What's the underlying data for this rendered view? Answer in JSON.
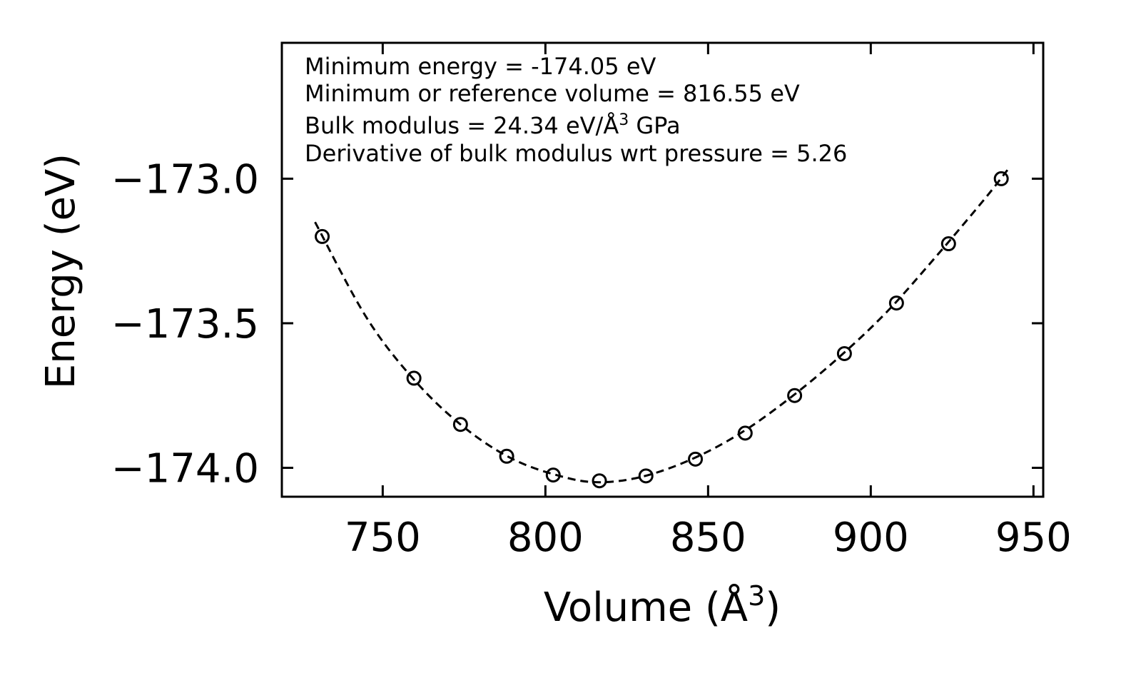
{
  "chart_data": {
    "type": "scatter",
    "xlabel": "Volume (Å³)",
    "ylabel": "Energy (eV)",
    "xlim": [
      719,
      953
    ],
    "ylim": [
      -174.1,
      -172.53
    ],
    "xticks": [
      750,
      800,
      850,
      900,
      950
    ],
    "yticks": [
      -174.0,
      -173.5,
      -173.0
    ],
    "xtick_labels": [
      "750",
      "800",
      "850",
      "900",
      "950"
    ],
    "ytick_labels": [
      "−174.0",
      "−173.5",
      "−173.0"
    ],
    "grid": false,
    "series": [
      {
        "name": "data",
        "marker": "open-circle",
        "x": [
          731.4,
          759.6,
          773.9,
          788.1,
          802.4,
          816.6,
          830.9,
          846.1,
          861.4,
          876.6,
          891.9,
          907.9,
          923.9,
          940.1
        ],
        "y": [
          -173.2,
          -173.69,
          -173.85,
          -173.96,
          -174.025,
          -174.045,
          -174.028,
          -173.97,
          -173.88,
          -173.75,
          -173.605,
          -173.43,
          -173.225,
          -173.0
        ]
      },
      {
        "name": "fit",
        "style": "dashed-line",
        "x": [
          729.2,
          745,
          760,
          775,
          790,
          805,
          816.55,
          830,
          845,
          860,
          875,
          890,
          905,
          920,
          935,
          942
        ],
        "y": [
          -173.15,
          -173.48,
          -173.7,
          -173.86,
          -173.97,
          -174.03,
          -174.05,
          -174.03,
          -173.97,
          -173.88,
          -173.76,
          -173.62,
          -173.46,
          -173.27,
          -173.07,
          -172.97
        ]
      }
    ],
    "annotations": [
      "Minimum energy = -174.05 eV",
      "Minimum or reference volume = 816.55 eV",
      "Bulk modulus = 24.34 eV/Å",
      "3",
      " GPa",
      "Derivative of bulk modulus wrt pressure = 5.26"
    ],
    "xlabel_parts": [
      "Volume (Å",
      "3",
      ")"
    ]
  }
}
